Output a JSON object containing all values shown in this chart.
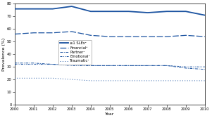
{
  "years": [
    2000,
    2001,
    2002,
    2003,
    2004,
    2005,
    2006,
    2007,
    2008,
    2009,
    2010
  ],
  "slse": [
    76,
    76,
    76,
    78,
    74,
    74,
    74,
    73,
    74,
    74,
    71
  ],
  "financial": [
    56,
    57,
    57,
    58,
    55,
    54,
    54,
    54,
    54,
    55,
    54
  ],
  "partner": [
    33,
    33,
    32,
    32,
    31,
    31,
    31,
    31,
    31,
    29,
    28
  ],
  "emotional": [
    32,
    32,
    32,
    31,
    31,
    31,
    31,
    31,
    31,
    30,
    30
  ],
  "traumatic": [
    21,
    21,
    21,
    20,
    19,
    19,
    19,
    19,
    19,
    19,
    19
  ],
  "line_color": "#1a52a0",
  "bg_color": "#ffffff",
  "ylabel": "Prevalence (%)",
  "xlabel": "Year",
  "ylim": [
    0,
    80
  ],
  "yticks": [
    0,
    10,
    20,
    30,
    40,
    50,
    60,
    70,
    80
  ],
  "legend_labels": [
    "≥1 SLEs²",
    "Financial³",
    "Partner¹",
    "Emotional⁴",
    "Traumatic¹"
  ],
  "label_fontsize": 4.5,
  "tick_fontsize": 3.8,
  "legend_fontsize": 3.8
}
